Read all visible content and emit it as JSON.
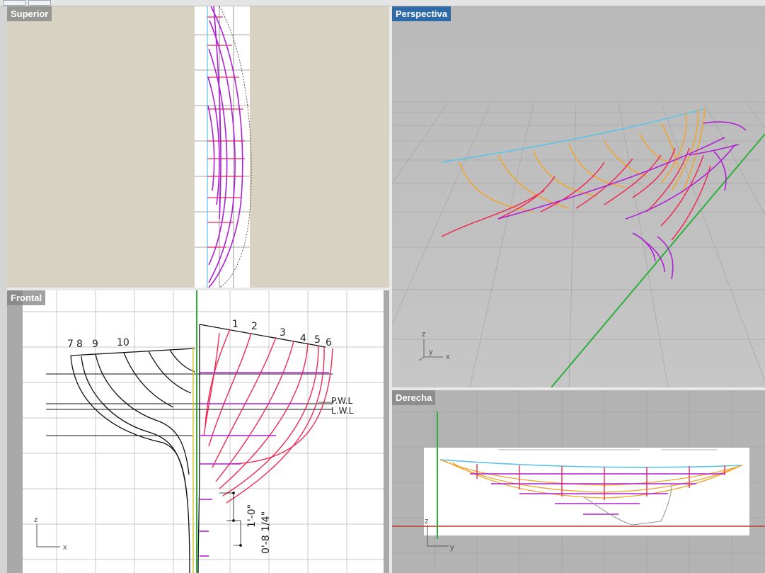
{
  "viewports": {
    "top": {
      "title": "Superior"
    },
    "perspective": {
      "title": "Perspectiva"
    },
    "front": {
      "title": "Frontal"
    },
    "right": {
      "title": "Derecha"
    }
  },
  "axes": {
    "perspective": {
      "z": "z",
      "y": "y",
      "x": "x"
    },
    "front": {
      "z": "z",
      "x": "x"
    },
    "right": {
      "z": "z",
      "y": "y"
    }
  },
  "drawing": {
    "station_numbers": [
      "1",
      "2",
      "3",
      "4",
      "5",
      "6",
      "7",
      "8",
      "9",
      "10"
    ],
    "waterlines": {
      "pwl": "P.W.L",
      "lwl": "L.W.L"
    },
    "dimensions": {
      "one": "1'-0\"",
      "two": "0'-8 1/4\""
    }
  },
  "colors": {
    "active_title": "#2f6aa8",
    "purple_curve": "#b01fd6",
    "red_curve": "#ee2a55",
    "orange_curve": "#f2a52a",
    "cyan_curve": "#5cc4e8",
    "green_axis": "#2eae3a",
    "red_axis": "#c0392b"
  }
}
